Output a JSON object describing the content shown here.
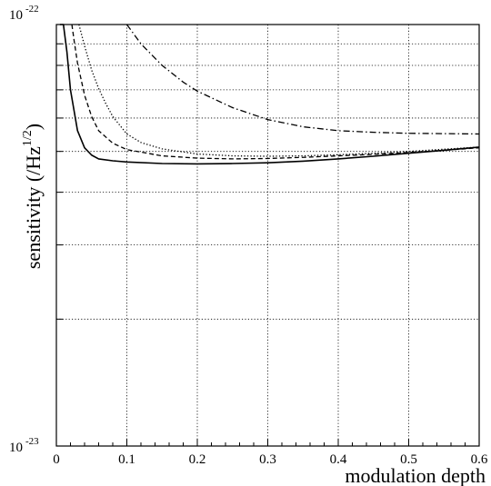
{
  "chart_data": {
    "type": "line",
    "title": "",
    "xlabel": "modulation depth",
    "ylabel": "sensitivity (/Hz",
    "ylabel_exp": "1/2",
    "ylabel_tail": ")",
    "xlim": [
      0,
      0.6
    ],
    "ylim": [
      1e-23,
      1e-22
    ],
    "yscale": "log",
    "grid": true,
    "x_ticks": [
      "0",
      "0.1",
      "0.2",
      "0.3",
      "0.4",
      "0.5",
      "0.6"
    ],
    "y_tick_labels": {
      "top_base": "10",
      "top_exp": "-22",
      "bottom_base": "10",
      "bottom_exp": "-23"
    },
    "series": [
      {
        "style": "solid",
        "x": [
          0.005,
          0.01,
          0.015,
          0.02,
          0.03,
          0.04,
          0.05,
          0.06,
          0.08,
          0.1,
          0.15,
          0.2,
          0.25,
          0.3,
          0.35,
          0.4,
          0.45,
          0.5,
          0.55,
          0.6
        ],
        "y": [
          1e-22,
          1e-22,
          8.6e-23,
          7e-23,
          5.6e-23,
          5.1e-23,
          4.9e-23,
          4.8e-23,
          4.75e-23,
          4.72e-23,
          4.68e-23,
          4.67e-23,
          4.68e-23,
          4.7e-23,
          4.74e-23,
          4.8e-23,
          4.87e-23,
          4.95e-23,
          5.03e-23,
          5.12e-23
        ]
      },
      {
        "style": "dashed",
        "x": [
          0.022,
          0.025,
          0.03,
          0.04,
          0.05,
          0.06,
          0.08,
          0.1,
          0.15,
          0.2,
          0.25,
          0.3,
          0.35,
          0.4,
          0.45,
          0.5,
          0.55,
          0.6
        ],
        "y": [
          1e-22,
          9.2e-23,
          8.1e-23,
          6.8e-23,
          6.05e-23,
          5.6e-23,
          5.23e-23,
          5.05e-23,
          4.88e-23,
          4.82e-23,
          4.8e-23,
          4.81e-23,
          4.84e-23,
          4.88e-23,
          4.92e-23,
          4.97e-23,
          5.03e-23,
          5.1e-23
        ]
      },
      {
        "style": "dotted",
        "x": [
          0.032,
          0.04,
          0.05,
          0.06,
          0.07,
          0.08,
          0.1,
          0.12,
          0.15,
          0.2,
          0.25,
          0.3,
          0.35,
          0.4,
          0.45,
          0.5,
          0.55,
          0.6
        ],
        "y": [
          1e-22,
          8.9e-23,
          7.8e-23,
          7.05e-23,
          6.5e-23,
          6.05e-23,
          5.5e-23,
          5.25e-23,
          5.07e-23,
          4.93e-23,
          4.88e-23,
          4.87e-23,
          4.88e-23,
          4.91e-23,
          4.95e-23,
          5e-23,
          5.06e-23,
          5.12e-23
        ]
      },
      {
        "style": "dash-dot",
        "x": [
          0.1,
          0.12,
          0.15,
          0.18,
          0.2,
          0.25,
          0.3,
          0.35,
          0.4,
          0.45,
          0.5,
          0.55,
          0.6
        ],
        "y": [
          1e-22,
          9e-23,
          8e-23,
          7.3e-23,
          6.95e-23,
          6.35e-23,
          5.95e-23,
          5.72e-23,
          5.6e-23,
          5.55e-23,
          5.52e-23,
          5.51e-23,
          5.5e-23
        ]
      }
    ]
  }
}
